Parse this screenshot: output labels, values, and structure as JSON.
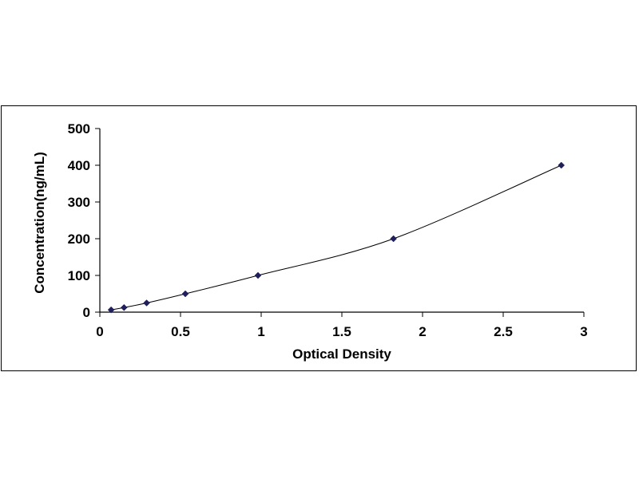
{
  "chart_data": {
    "type": "scatter",
    "title": "",
    "xlabel": "Optical Density",
    "ylabel": "Concentration(ng/mL)",
    "xlim": [
      0,
      3
    ],
    "ylim": [
      0,
      500
    ],
    "x_ticks": [
      "0",
      "0.5",
      "1",
      "1.5",
      "2",
      "2.5",
      "3"
    ],
    "y_ticks": [
      "0",
      "100",
      "200",
      "300",
      "400",
      "500"
    ],
    "grid": false,
    "legend": "none",
    "line": "smoothed curve through points",
    "marker": "diamond",
    "series_color": "#1f1f5c",
    "series": [
      {
        "x": [
          0.07,
          0.15,
          0.29,
          0.53,
          0.98,
          1.82,
          2.86
        ],
        "y": [
          6.25,
          12.5,
          25,
          50,
          100,
          200,
          400
        ]
      }
    ]
  }
}
